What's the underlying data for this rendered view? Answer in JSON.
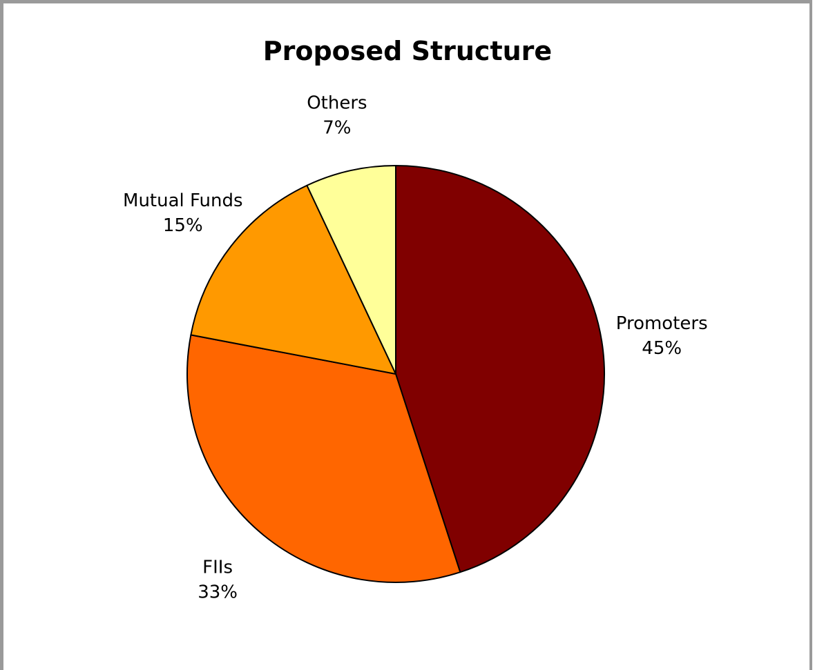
{
  "chart_data": {
    "type": "pie",
    "title": "Proposed Structure",
    "slices": [
      {
        "label": "Promoters",
        "value": 45,
        "value_label": "45%",
        "color": "#800000"
      },
      {
        "label": "FIIs",
        "value": 33,
        "value_label": "33%",
        "color": "#FF6600"
      },
      {
        "label": "Mutual Funds",
        "value": 15,
        "value_label": "15%",
        "color": "#FF9900"
      },
      {
        "label": "Others",
        "value": 7,
        "value_label": "7%",
        "color": "#FFFF99"
      }
    ],
    "start_angle_deg": 0,
    "direction": "clockwise",
    "legend": "none",
    "data_labels": "outside"
  }
}
